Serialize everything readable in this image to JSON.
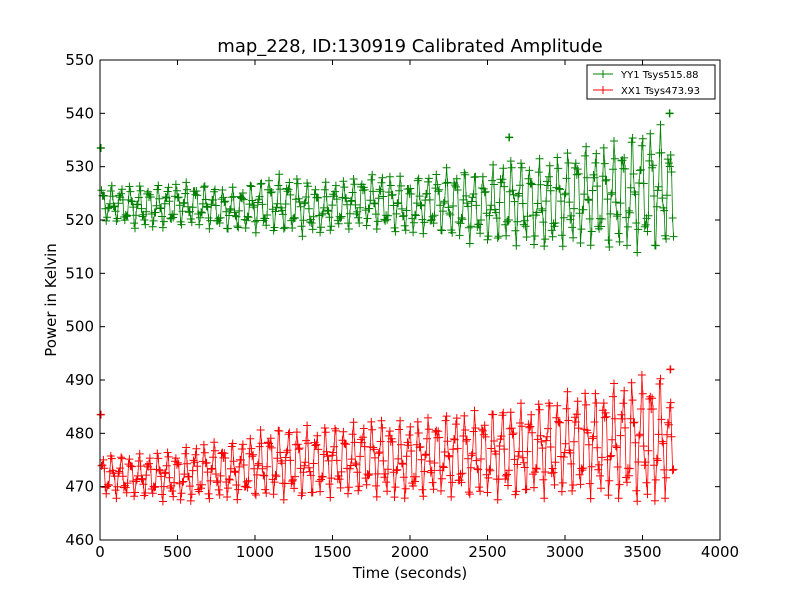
{
  "chart_data": {
    "type": "line",
    "title": "map_228, ID:130919 Calibrated Amplitude",
    "xlabel": "Time (seconds)",
    "ylabel": "Power in Kelvin",
    "xlim": [
      0,
      4000
    ],
    "ylim": [
      460,
      550
    ],
    "xticks": [
      0,
      500,
      1000,
      1500,
      2000,
      2500,
      3000,
      3500,
      4000
    ],
    "yticks": [
      460,
      470,
      480,
      490,
      500,
      510,
      520,
      530,
      540,
      550
    ],
    "grid": false,
    "legend_position": "top-right",
    "marker": "+",
    "series": [
      {
        "name": "YY1 Tsys515.88",
        "color": "#008000",
        "x": [
          0,
          100,
          200,
          300,
          400,
          500,
          600,
          700,
          800,
          900,
          1000,
          1100,
          1200,
          1300,
          1400,
          1500,
          1600,
          1700,
          1800,
          1900,
          2000,
          2100,
          2200,
          2300,
          2400,
          2500,
          2600,
          2700,
          2800,
          2900,
          3000,
          3100,
          3200,
          3300,
          3400,
          3500,
          3600,
          3700
        ],
        "mean": [
          523,
          523,
          522.5,
          522.5,
          522.5,
          523,
          523,
          522.5,
          522,
          522,
          522.5,
          523,
          523,
          522.5,
          522,
          522.5,
          523,
          523.5,
          523.5,
          523,
          522.5,
          523,
          523.5,
          523,
          522.5,
          522.5,
          523.5,
          523.5,
          523,
          523,
          524,
          524.5,
          524.5,
          524.5,
          525,
          525.5,
          526,
          525
        ],
        "amplitude": [
          2.5,
          2.5,
          3,
          3,
          3,
          3,
          3,
          3,
          3,
          3,
          3.5,
          4,
          4,
          4,
          3.5,
          3.5,
          3.5,
          3.5,
          4,
          4,
          4,
          4,
          4.5,
          5,
          5,
          5,
          6,
          6,
          6,
          6.5,
          6.5,
          7,
          7,
          7.5,
          8,
          8.5,
          9,
          7
        ],
        "outliers": [
          {
            "x": 5,
            "y": 533.5
          },
          {
            "x": 2640,
            "y": 535.5
          },
          {
            "x": 3675,
            "y": 540
          }
        ]
      },
      {
        "name": "XX1 Tsys473.93",
        "color": "#ff0000",
        "x": [
          0,
          100,
          200,
          300,
          400,
          500,
          600,
          700,
          800,
          900,
          1000,
          1100,
          1200,
          1300,
          1400,
          1500,
          1600,
          1700,
          1800,
          1900,
          2000,
          2100,
          2200,
          2300,
          2400,
          2500,
          2600,
          2700,
          2800,
          2900,
          3000,
          3100,
          3200,
          3300,
          3400,
          3500,
          3600,
          3700
        ],
        "mean": [
          472,
          472,
          472,
          472,
          472,
          472,
          472.5,
          473,
          473,
          473,
          474,
          474.5,
          474.5,
          474.5,
          474.5,
          475,
          475,
          475.5,
          475.5,
          475,
          475,
          475.5,
          476,
          476,
          476,
          476,
          476.5,
          476.5,
          477,
          477.5,
          478,
          478,
          478,
          478.5,
          478.5,
          479,
          479,
          478
        ],
        "amplitude": [
          3,
          3,
          3,
          3,
          3.5,
          3.5,
          4,
          4,
          4,
          4,
          4.5,
          5,
          5,
          5,
          5,
          5,
          5,
          5,
          5.5,
          5.5,
          5.5,
          5.5,
          5.5,
          6,
          6,
          6,
          6.5,
          6.5,
          6.5,
          7,
          7,
          7.5,
          7.5,
          8,
          8.5,
          9,
          9.5,
          6
        ],
        "outliers": [
          {
            "x": 5,
            "y": 483.5
          },
          {
            "x": 3680,
            "y": 492
          }
        ]
      }
    ]
  }
}
